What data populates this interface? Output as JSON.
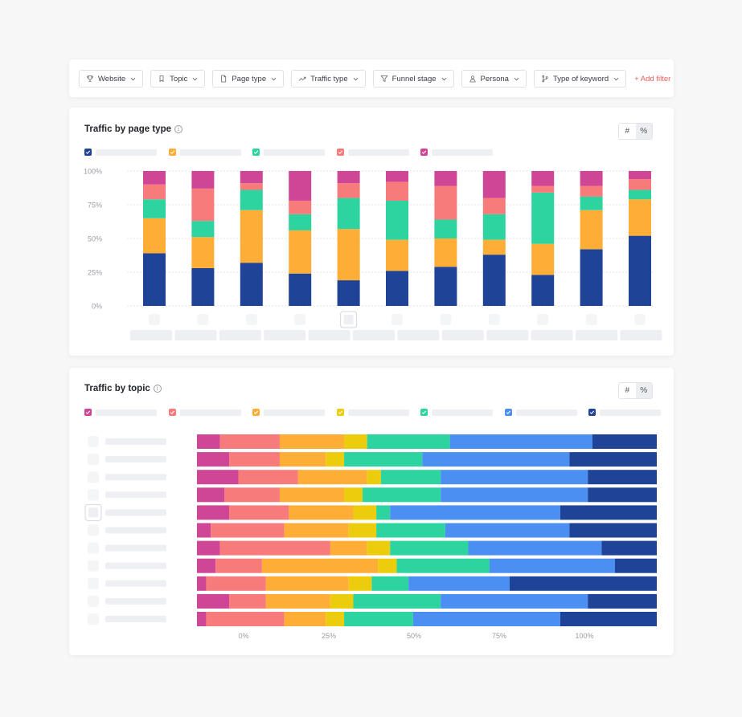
{
  "filters": {
    "items": [
      {
        "label": "Website",
        "icon": "trophy-icon"
      },
      {
        "label": "Topic",
        "icon": "bookmark-icon"
      },
      {
        "label": "Page type",
        "icon": "document-icon"
      },
      {
        "label": "Traffic type",
        "icon": "trend-icon"
      },
      {
        "label": "Funnel stage",
        "icon": "funnel-icon"
      },
      {
        "label": "Persona",
        "icon": "person-icon"
      },
      {
        "label": "Type of keyword",
        "icon": "branch-icon"
      }
    ],
    "add_label": "+ Add filter",
    "add_color": "#f05c5c"
  },
  "toggle": {
    "count_label": "#",
    "percent_label": "%"
  },
  "colors": {
    "navy": "#1f4396",
    "orange": "#feae37",
    "green": "#2dd4a0",
    "salmon": "#f77b7b",
    "magenta": "#cf4697",
    "yellow": "#ebcd0d",
    "blue": "#4b8ff2"
  },
  "chart1": {
    "title": "Traffic by page type",
    "legend_colors": [
      "#1f4396",
      "#feae37",
      "#2dd4a0",
      "#f77b7b",
      "#cf4697"
    ]
  },
  "chart2": {
    "title": "Traffic by topic",
    "legend_colors": [
      "#cf4697",
      "#f77b7b",
      "#feae37",
      "#ebcd0d",
      "#2dd4a0",
      "#4b8ff2",
      "#1f4396"
    ]
  },
  "chart_data": [
    {
      "type": "bar",
      "stacked": true,
      "orientation": "vertical",
      "title": "Traffic by page type",
      "y_ticks": [
        "100%",
        "75%",
        "50%",
        "25%",
        "0%"
      ],
      "ylim": [
        0,
        100
      ],
      "grid": true,
      "legend_position": "top-left",
      "categories": [
        "",
        "",
        "",
        "",
        "",
        "",
        "",
        "",
        "",
        "",
        ""
      ],
      "series": [
        {
          "color": "#1f4396",
          "values": [
            39,
            28,
            32,
            24,
            19,
            26,
            29,
            38,
            23,
            42,
            52
          ]
        },
        {
          "color": "#feae37",
          "values": [
            26,
            23,
            39,
            32,
            38,
            23,
            21,
            11,
            23,
            29,
            27
          ]
        },
        {
          "color": "#2dd4a0",
          "values": [
            14,
            12,
            15,
            12,
            23,
            29,
            14,
            19,
            38,
            10,
            7
          ]
        },
        {
          "color": "#f77b7b",
          "values": [
            11,
            24,
            5,
            10,
            11,
            14,
            25,
            12,
            5,
            8,
            8
          ]
        },
        {
          "color": "#cf4697",
          "values": [
            10,
            13,
            9,
            22,
            9,
            8,
            11,
            20,
            11,
            11,
            6
          ]
        }
      ]
    },
    {
      "type": "bar",
      "stacked": true,
      "orientation": "horizontal",
      "title": "Traffic by topic",
      "x_ticks": [
        "0%",
        "25%",
        "50%",
        "75%",
        "100%"
      ],
      "xlim": [
        0,
        100
      ],
      "grid": false,
      "legend_position": "top-left",
      "categories": [
        "",
        "",
        "",
        "",
        "",
        "",
        "",
        "",
        "",
        "",
        ""
      ],
      "series": [
        {
          "color": "#cf4697",
          "values": [
            5,
            7,
            9,
            6,
            7,
            3,
            5,
            4,
            2,
            7,
            2
          ]
        },
        {
          "color": "#f77b7b",
          "values": [
            13,
            11,
            13,
            12,
            13,
            16,
            24,
            10,
            13,
            8,
            17
          ]
        },
        {
          "color": "#feae37",
          "values": [
            14,
            10,
            15,
            14,
            14,
            14,
            8,
            25,
            18,
            14,
            9
          ]
        },
        {
          "color": "#ebcd0d",
          "values": [
            5,
            4,
            3,
            4,
            5,
            6,
            5,
            4,
            5,
            5,
            4
          ]
        },
        {
          "color": "#2dd4a0",
          "values": [
            18,
            17,
            13,
            17,
            3,
            15,
            17,
            20,
            8,
            19,
            15
          ]
        },
        {
          "color": "#4b8ff2",
          "values": [
            31,
            32,
            32,
            32,
            37,
            27,
            29,
            27,
            22,
            32,
            32
          ]
        },
        {
          "color": "#1f4396",
          "values": [
            14,
            19,
            15,
            15,
            21,
            19,
            12,
            9,
            32,
            15,
            21
          ]
        }
      ]
    }
  ]
}
